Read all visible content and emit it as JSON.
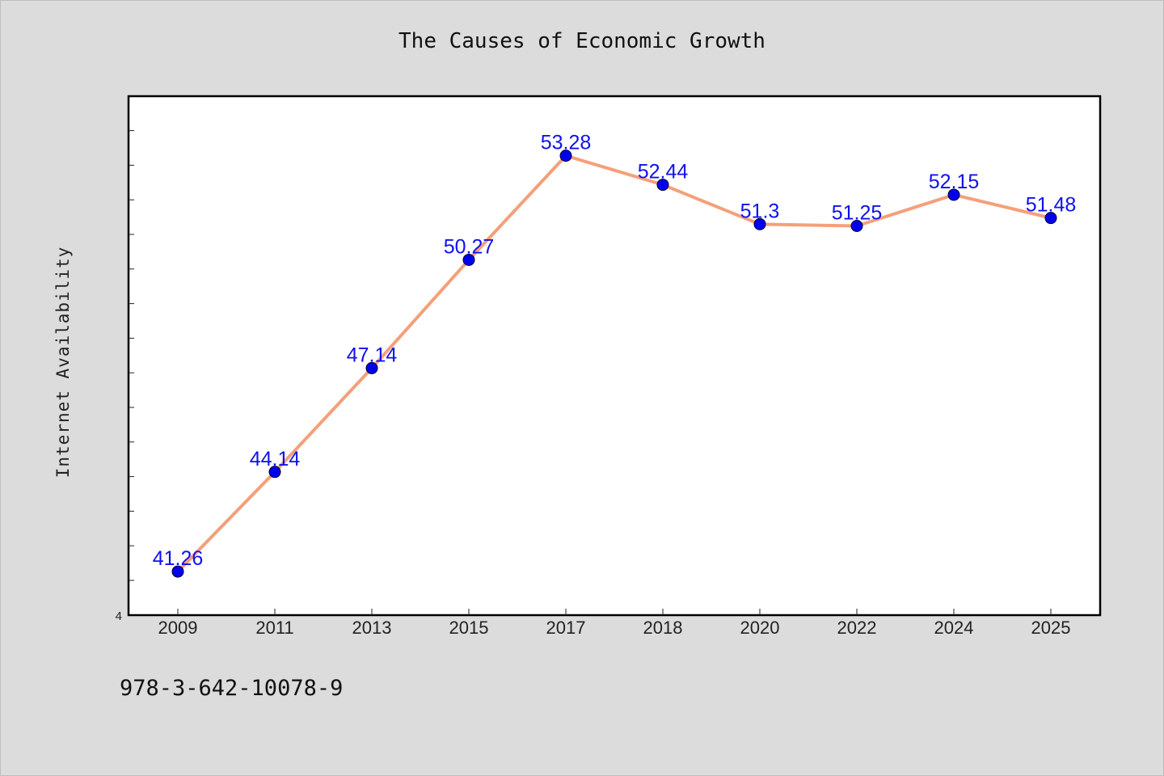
{
  "title": "The Causes of Economic Growth",
  "ylabel": "Internet Availability",
  "footer_code": "978-3-642-10078-9",
  "colors": {
    "background": "#dcdcdc",
    "plot_area": "#ffffff",
    "line": "#f4a07a",
    "marker": "#0000ee",
    "data_label": "#1010ee"
  },
  "chart_data": {
    "type": "line",
    "title": "The Causes of Economic Growth",
    "xlabel": "",
    "ylabel": "Internet Availability",
    "categories": [
      "2009",
      "2011",
      "2013",
      "2015",
      "2017",
      "2018",
      "2020",
      "2022",
      "2024",
      "2025"
    ],
    "series": [
      {
        "values": [
          41.26,
          44.14,
          47.14,
          50.27,
          53.28,
          52.44,
          51.3,
          51.25,
          52.15,
          51.48
        ],
        "labels": [
          "41.26",
          "44.14",
          "47.14",
          "50.27",
          "53.28",
          "52.44",
          "51.3",
          "51.25",
          "52.15",
          "51.48"
        ]
      }
    ],
    "ylim": [
      40,
      55
    ],
    "y_tick_labels": [
      "4"
    ],
    "grid": false,
    "legend": "none"
  }
}
